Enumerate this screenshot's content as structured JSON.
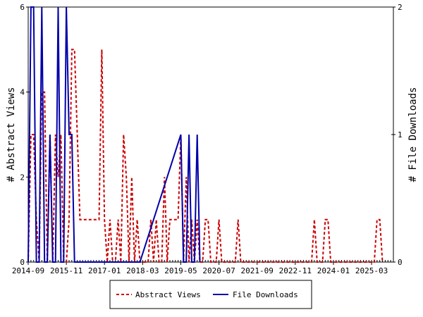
{
  "chart_data": {
    "type": "line",
    "title": "",
    "x_ticks": [
      "2014-09",
      "2015-11",
      "2017-01",
      "2018-03",
      "2019-05",
      "2020-07",
      "2021-09",
      "2022-11",
      "2024-01",
      "2025-03"
    ],
    "x_range": [
      "2014-09",
      "2025-11"
    ],
    "y_left": {
      "label": "# Abstract Views",
      "range": [
        0,
        6
      ],
      "ticks": [
        "0",
        "2",
        "4",
        "6"
      ]
    },
    "y_right": {
      "label": "# File Downloads",
      "range": [
        0,
        2
      ],
      "ticks": [
        "0",
        "1",
        "2"
      ]
    },
    "legend": {
      "placement": "bottom-center"
    },
    "series": [
      {
        "name": "Abstract Views",
        "axis": "left",
        "color": "#cc0000",
        "style": "dashed",
        "points": [
          [
            "2014-09",
            0
          ],
          [
            "2014-10",
            3
          ],
          [
            "2014-11",
            3
          ],
          [
            "2014-12",
            1
          ],
          [
            "2015-01",
            0
          ],
          [
            "2015-02",
            4
          ],
          [
            "2015-03",
            4
          ],
          [
            "2015-04",
            0
          ],
          [
            "2015-05",
            3
          ],
          [
            "2015-06",
            0
          ],
          [
            "2015-07",
            3
          ],
          [
            "2015-08",
            2
          ],
          [
            "2015-09",
            3
          ],
          [
            "2015-10",
            0
          ],
          [
            "2015-11",
            0
          ],
          [
            "2015-12",
            1
          ],
          [
            "2016-01",
            5
          ],
          [
            "2016-02",
            5
          ],
          [
            "2016-03",
            3
          ],
          [
            "2016-04",
            1
          ],
          [
            "2016-05",
            1
          ],
          [
            "2016-06",
            1
          ],
          [
            "2016-07",
            1
          ],
          [
            "2016-08",
            1
          ],
          [
            "2016-09",
            1
          ],
          [
            "2016-10",
            1
          ],
          [
            "2016-11",
            1
          ],
          [
            "2016-12",
            5
          ],
          [
            "2017-01",
            1
          ],
          [
            "2017-02",
            0
          ],
          [
            "2017-03",
            1
          ],
          [
            "2017-04",
            0
          ],
          [
            "2017-05",
            0
          ],
          [
            "2017-06",
            1
          ],
          [
            "2017-07",
            0
          ],
          [
            "2017-08",
            3
          ],
          [
            "2017-09",
            2
          ],
          [
            "2017-10",
            0
          ],
          [
            "2017-11",
            2
          ],
          [
            "2017-12",
            0
          ],
          [
            "2018-01",
            1
          ],
          [
            "2018-02",
            0
          ],
          [
            "2018-03",
            0
          ],
          [
            "2018-04",
            0
          ],
          [
            "2018-05",
            0
          ],
          [
            "2018-06",
            1
          ],
          [
            "2018-07",
            0
          ],
          [
            "2018-08",
            1
          ],
          [
            "2018-09",
            0
          ],
          [
            "2018-10",
            0
          ],
          [
            "2018-11",
            2
          ],
          [
            "2018-12",
            0
          ],
          [
            "2019-01",
            1
          ],
          [
            "2019-02",
            1
          ],
          [
            "2019-03",
            1
          ],
          [
            "2019-04",
            1
          ],
          [
            "2019-05",
            3
          ],
          [
            "2019-06",
            0
          ],
          [
            "2019-07",
            2
          ],
          [
            "2019-08",
            0
          ],
          [
            "2019-09",
            1
          ],
          [
            "2019-10",
            0
          ],
          [
            "2019-11",
            1
          ],
          [
            "2019-12",
            0
          ],
          [
            "2020-01",
            0
          ],
          [
            "2020-02",
            1
          ],
          [
            "2020-03",
            1
          ],
          [
            "2020-04",
            0
          ],
          [
            "2020-05",
            0
          ],
          [
            "2020-06",
            0
          ],
          [
            "2020-07",
            1
          ],
          [
            "2020-08",
            0
          ],
          [
            "2020-09",
            0
          ],
          [
            "2021-01",
            0
          ],
          [
            "2021-02",
            1
          ],
          [
            "2021-03",
            0
          ],
          [
            "2023-05",
            0
          ],
          [
            "2023-06",
            1
          ],
          [
            "2023-07",
            0
          ],
          [
            "2023-09",
            0
          ],
          [
            "2023-10",
            1
          ],
          [
            "2023-11",
            1
          ],
          [
            "2023-12",
            0
          ],
          [
            "2025-04",
            0
          ],
          [
            "2025-05",
            1
          ],
          [
            "2025-06",
            1
          ],
          [
            "2025-07",
            0
          ]
        ]
      },
      {
        "name": "File Downloads",
        "axis": "right",
        "color": "#0000aa",
        "style": "solid",
        "points": [
          [
            "2014-09",
            0
          ],
          [
            "2014-10",
            2
          ],
          [
            "2014-11",
            2
          ],
          [
            "2014-12",
            0
          ],
          [
            "2015-01",
            0
          ],
          [
            "2015-02",
            2
          ],
          [
            "2015-03",
            0
          ],
          [
            "2015-04",
            0
          ],
          [
            "2015-05",
            1
          ],
          [
            "2015-06",
            0
          ],
          [
            "2015-07",
            0
          ],
          [
            "2015-08",
            2
          ],
          [
            "2015-09",
            0
          ],
          [
            "2015-10",
            0
          ],
          [
            "2015-11",
            2
          ],
          [
            "2015-12",
            1
          ],
          [
            "2016-01",
            1
          ],
          [
            "2016-02",
            0
          ],
          [
            "2016-03",
            0
          ],
          [
            "2016-04",
            0
          ],
          [
            "2016-05",
            0
          ],
          [
            "2016-06",
            0
          ],
          [
            "2018-01",
            0
          ],
          [
            "2018-02",
            0
          ],
          [
            "2019-05",
            1
          ],
          [
            "2019-06",
            0
          ],
          [
            "2019-07",
            0
          ],
          [
            "2019-08",
            1
          ],
          [
            "2019-09",
            0
          ],
          [
            "2019-10",
            0
          ],
          [
            "2019-11",
            1
          ],
          [
            "2019-12",
            0
          ]
        ]
      }
    ]
  }
}
